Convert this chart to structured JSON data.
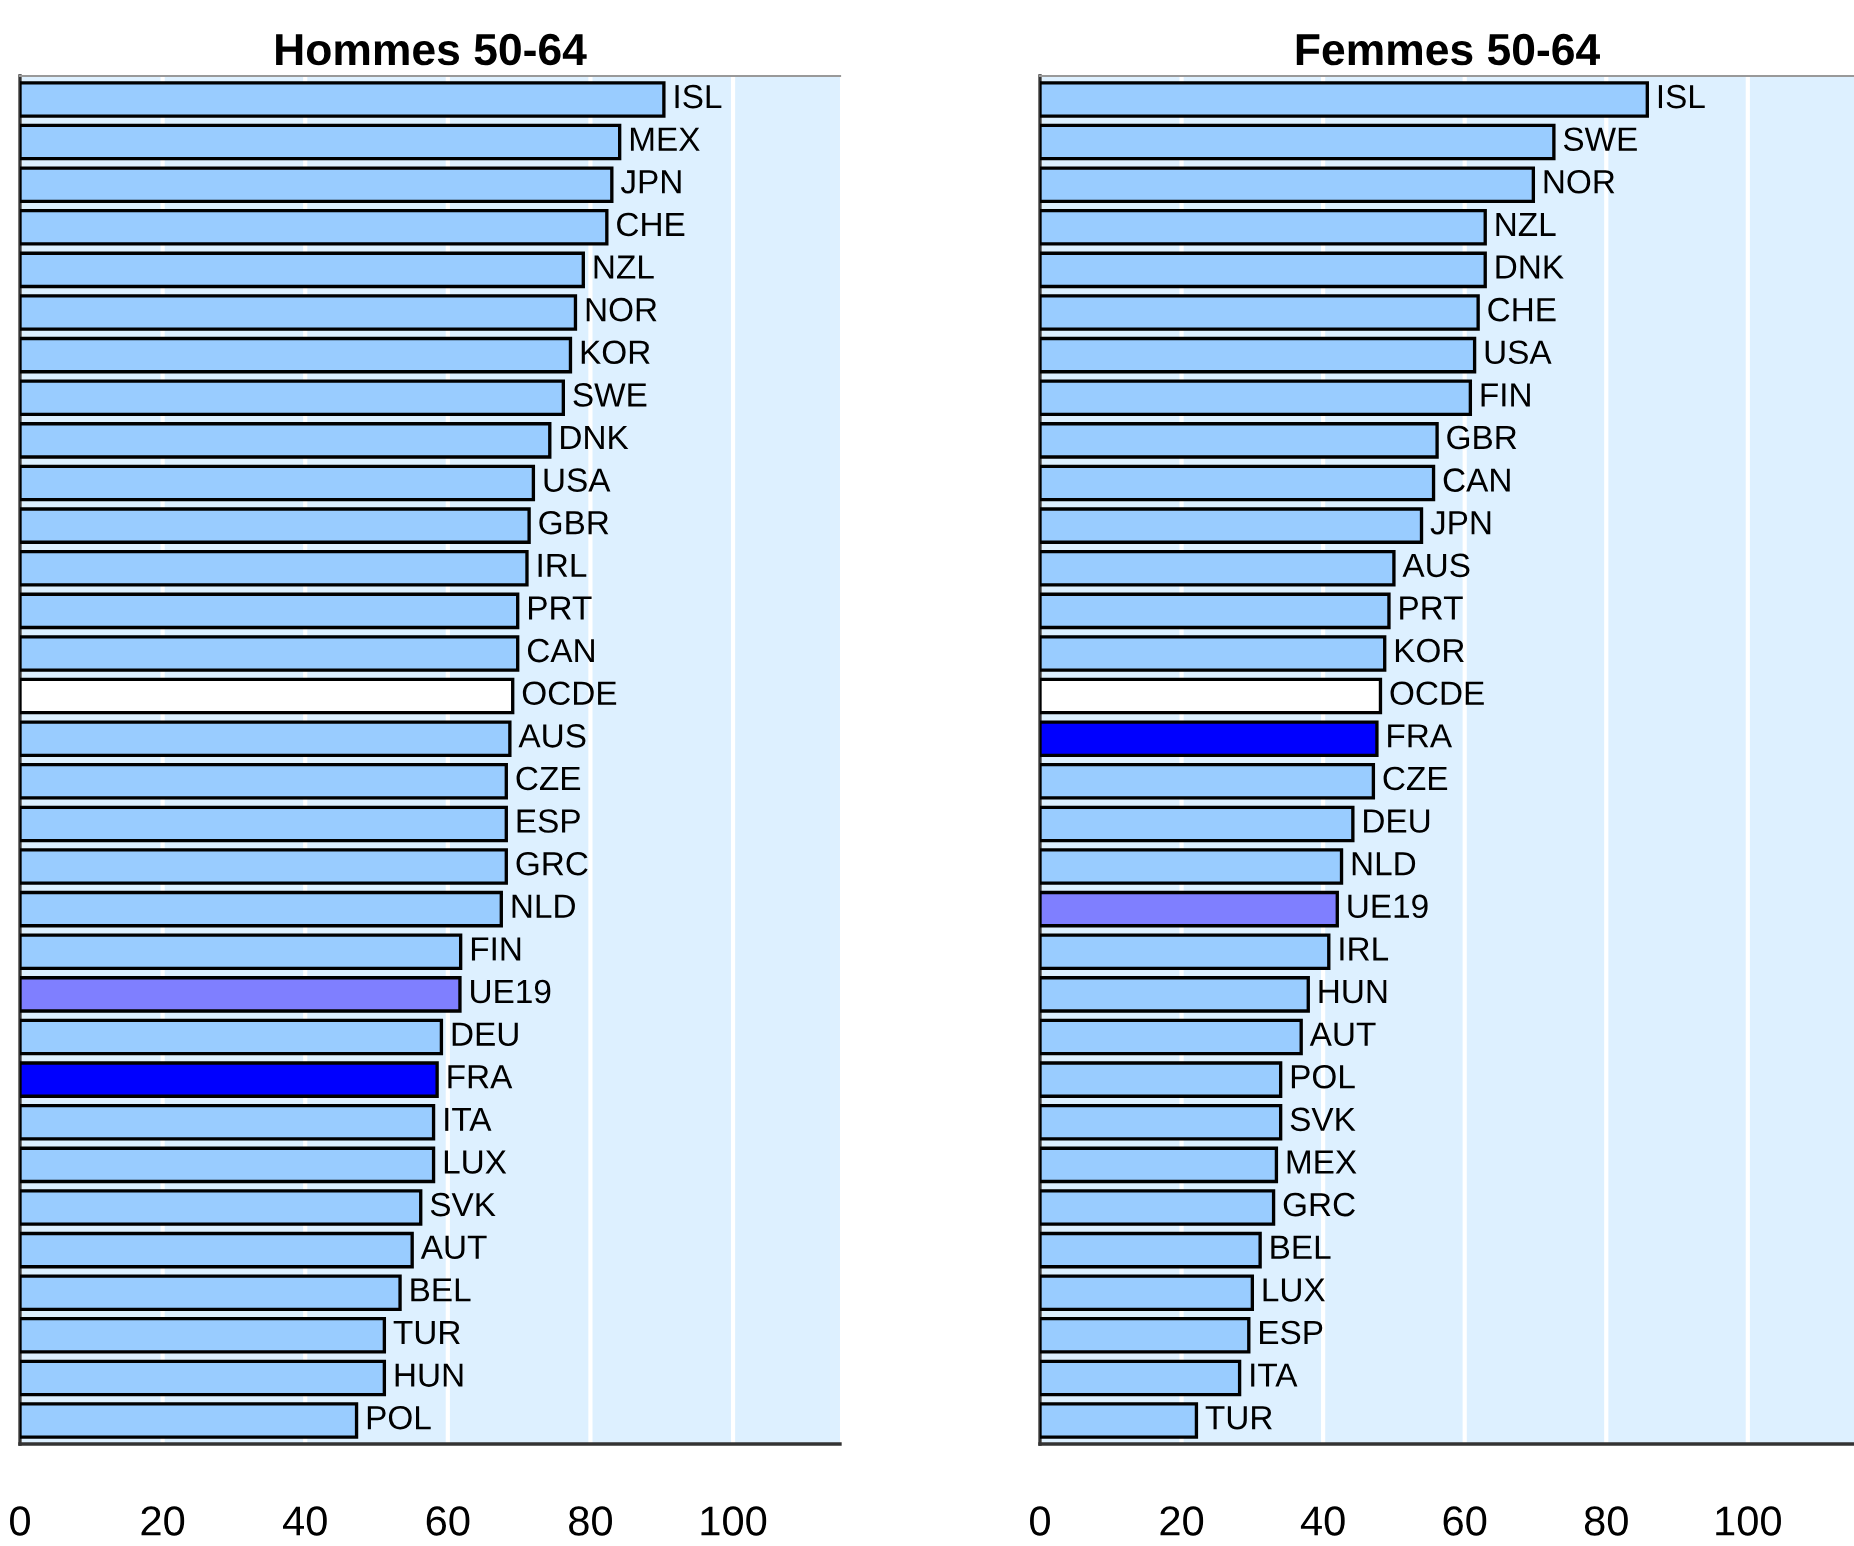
{
  "chart_data": [
    {
      "type": "bar",
      "orientation": "horizontal",
      "title": "Hommes 50-64",
      "categories": [
        "ISL",
        "MEX",
        "JPN",
        "CHE",
        "NZL",
        "NOR",
        "KOR",
        "SWE",
        "DNK",
        "USA",
        "GBR",
        "IRL",
        "PRT",
        "CAN",
        "OCDE",
        "AUS",
        "CZE",
        "ESP",
        "GRC",
        "NLD",
        "FIN",
        "UE19",
        "DEU",
        "FRA",
        "ITA",
        "LUX",
        "SVK",
        "AUT",
        "BEL",
        "TUR",
        "HUN",
        "POL"
      ],
      "values": [
        90.3,
        84.1,
        83.0,
        82.3,
        79.0,
        77.9,
        77.2,
        76.2,
        74.3,
        72.0,
        71.4,
        71.1,
        69.8,
        69.8,
        69.1,
        68.7,
        68.2,
        68.2,
        68.2,
        67.5,
        61.8,
        61.7,
        59.1,
        58.5,
        58.0,
        58.0,
        56.2,
        55.0,
        53.3,
        51.1,
        51.1,
        47.2
      ],
      "colors": [
        "#99ccff",
        "#99ccff",
        "#99ccff",
        "#99ccff",
        "#99ccff",
        "#99ccff",
        "#99ccff",
        "#99ccff",
        "#99ccff",
        "#99ccff",
        "#99ccff",
        "#99ccff",
        "#99ccff",
        "#99ccff",
        "#ffffff",
        "#99ccff",
        "#99ccff",
        "#99ccff",
        "#99ccff",
        "#99ccff",
        "#99ccff",
        "#7f7fff",
        "#99ccff",
        "#0000ff",
        "#99ccff",
        "#99ccff",
        "#99ccff",
        "#99ccff",
        "#99ccff",
        "#99ccff",
        "#99ccff",
        "#99ccff"
      ],
      "xlim": [
        0,
        115
      ],
      "xticks": [
        0,
        20,
        40,
        60,
        80,
        100
      ],
      "grid": "x"
    },
    {
      "type": "bar",
      "orientation": "horizontal",
      "title": "Femmes 50-64",
      "categories": [
        "ISL",
        "SWE",
        "NOR",
        "NZL",
        "DNK",
        "CHE",
        "USA",
        "FIN",
        "GBR",
        "CAN",
        "JPN",
        "AUS",
        "PRT",
        "KOR",
        "OCDE",
        "FRA",
        "CZE",
        "DEU",
        "NLD",
        "UE19",
        "IRL",
        "HUN",
        "AUT",
        "POL",
        "SVK",
        "MEX",
        "GRC",
        "BEL",
        "LUX",
        "ESP",
        "ITA",
        "TUR"
      ],
      "values": [
        85.8,
        72.6,
        69.7,
        62.9,
        62.9,
        61.9,
        61.4,
        60.8,
        56.1,
        55.6,
        53.9,
        50.0,
        49.3,
        48.7,
        48.1,
        47.6,
        47.1,
        44.2,
        42.6,
        42.0,
        40.8,
        37.9,
        36.9,
        34.0,
        34.0,
        33.4,
        33.0,
        31.1,
        30.0,
        29.5,
        28.2,
        22.1
      ],
      "colors": [
        "#99ccff",
        "#99ccff",
        "#99ccff",
        "#99ccff",
        "#99ccff",
        "#99ccff",
        "#99ccff",
        "#99ccff",
        "#99ccff",
        "#99ccff",
        "#99ccff",
        "#99ccff",
        "#99ccff",
        "#99ccff",
        "#ffffff",
        "#0000ff",
        "#99ccff",
        "#99ccff",
        "#99ccff",
        "#7f7fff",
        "#99ccff",
        "#99ccff",
        "#99ccff",
        "#99ccff",
        "#99ccff",
        "#99ccff",
        "#99ccff",
        "#99ccff",
        "#99ccff",
        "#99ccff",
        "#99ccff",
        "#99ccff"
      ],
      "xlim": [
        0,
        115
      ],
      "xticks": [
        0,
        20,
        40,
        60,
        80,
        100
      ],
      "grid": "x"
    }
  ]
}
